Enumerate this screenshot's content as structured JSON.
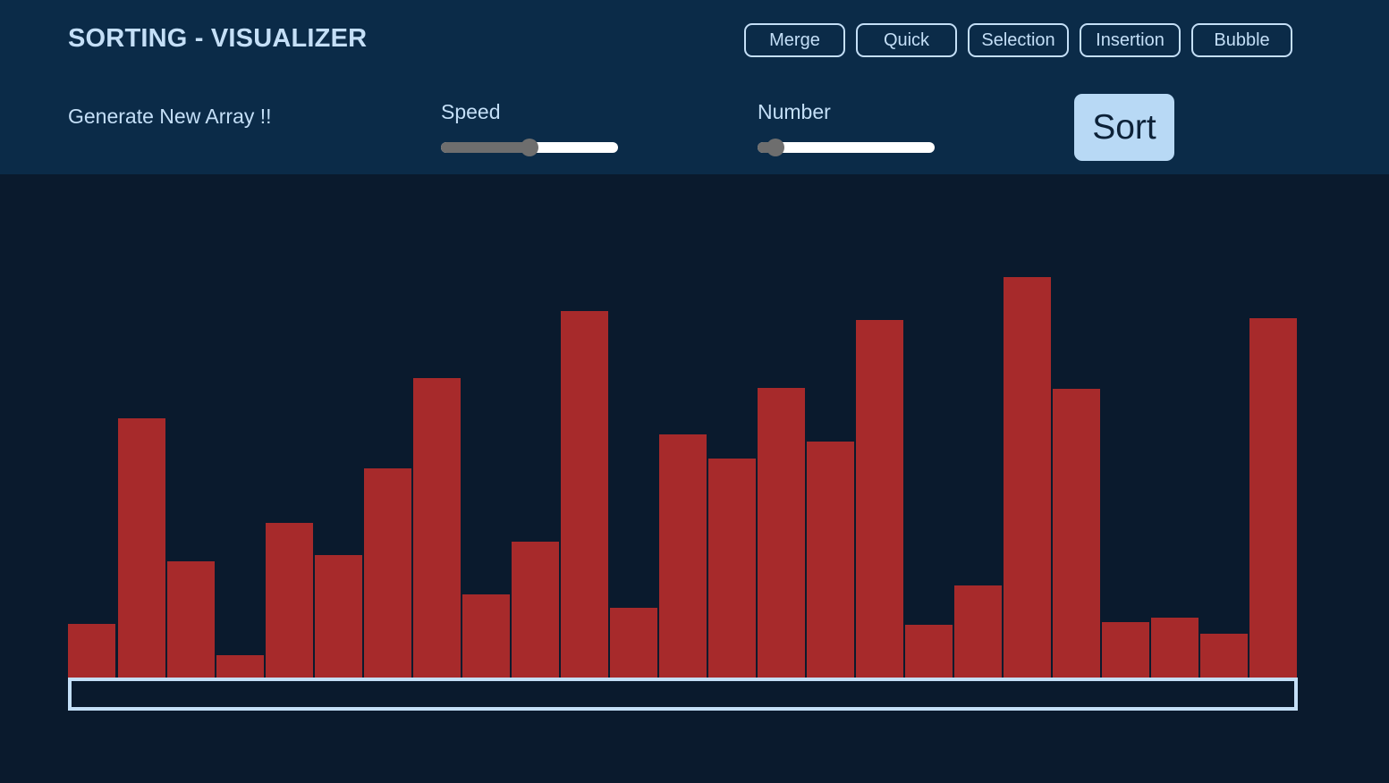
{
  "header": {
    "title": "SORTING - VISUALIZER",
    "algorithms": [
      {
        "label": "Merge"
      },
      {
        "label": "Quick"
      },
      {
        "label": "Selection"
      },
      {
        "label": "Insertion"
      },
      {
        "label": "Bubble"
      }
    ],
    "generate_label": "Generate New Array !!",
    "speed": {
      "label": "Speed",
      "value_fraction": 0.5
    },
    "number": {
      "label": "Number",
      "value_fraction": 0.1
    },
    "sort_label": "Sort"
  },
  "array": {
    "values": [
      60,
      290,
      130,
      25,
      173,
      137,
      234,
      335,
      93,
      152,
      410,
      78,
      272,
      245,
      324,
      264,
      400,
      59,
      103,
      448,
      323,
      62,
      67,
      49,
      402
    ]
  },
  "colors": {
    "header_bg": "#0b2b48",
    "page_bg": "#0a1a2d",
    "bar": "#a72a2b",
    "accent": "#c4dff7",
    "sort_button_bg": "#b8d9f5"
  }
}
